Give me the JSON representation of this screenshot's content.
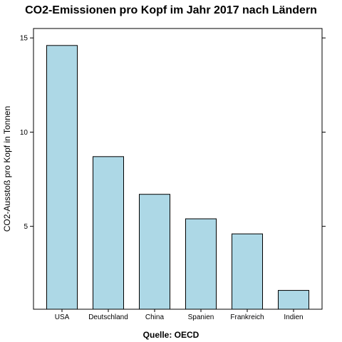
{
  "chart_data": {
    "type": "bar",
    "title": "CO2-Emissionen pro Kopf im Jahr 2017 nach Ländern",
    "xlabel": "Quelle: OECD",
    "ylabel": "CO2-Ausstoß pro Kopf in Tonnen",
    "categories": [
      "USA",
      "Deutschland",
      "China",
      "Spanien",
      "Frankreich",
      "Indien"
    ],
    "values": [
      14.6,
      8.7,
      6.7,
      5.4,
      4.6,
      1.6
    ],
    "ylim": [
      0.6,
      15.5
    ],
    "yticks": [
      5,
      10,
      15
    ],
    "bar_color": "#add8e6",
    "grid": false
  }
}
